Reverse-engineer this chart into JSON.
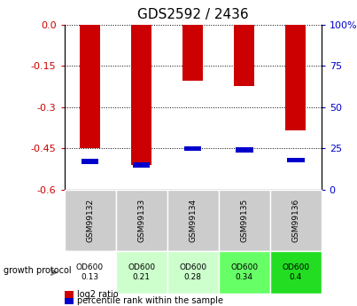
{
  "title": "GDS2592 / 2436",
  "samples": [
    "GSM99132",
    "GSM99133",
    "GSM99134",
    "GSM99135",
    "GSM99136"
  ],
  "log2_ratios": [
    -0.45,
    -0.51,
    -0.205,
    -0.225,
    -0.385
  ],
  "percentile_ranks": [
    17,
    15,
    25,
    24,
    18
  ],
  "bar_color": "#cc0000",
  "percentile_color": "#0000cc",
  "ylim_left": [
    -0.6,
    0.0
  ],
  "yticks_left": [
    0.0,
    -0.15,
    -0.3,
    -0.45,
    -0.6
  ],
  "yticks_right": [
    100,
    75,
    50,
    25,
    0
  ],
  "ylim_right": [
    0,
    100
  ],
  "left_tick_color": "#cc0000",
  "right_tick_color": "#0000cc",
  "od_values": [
    "OD600\n0.13",
    "OD600\n0.21",
    "OD600\n0.28",
    "OD600\n0.34",
    "OD600\n0.4"
  ],
  "od_bg_colors": [
    "#ffffff",
    "#ccffcc",
    "#ccffcc",
    "#66ff66",
    "#22dd22"
  ],
  "sample_label_bg": "#cccccc",
  "legend_items": [
    "log2 ratio",
    "percentile rank within the sample"
  ],
  "bar_width": 0.4,
  "growth_protocol": "growth protocol"
}
